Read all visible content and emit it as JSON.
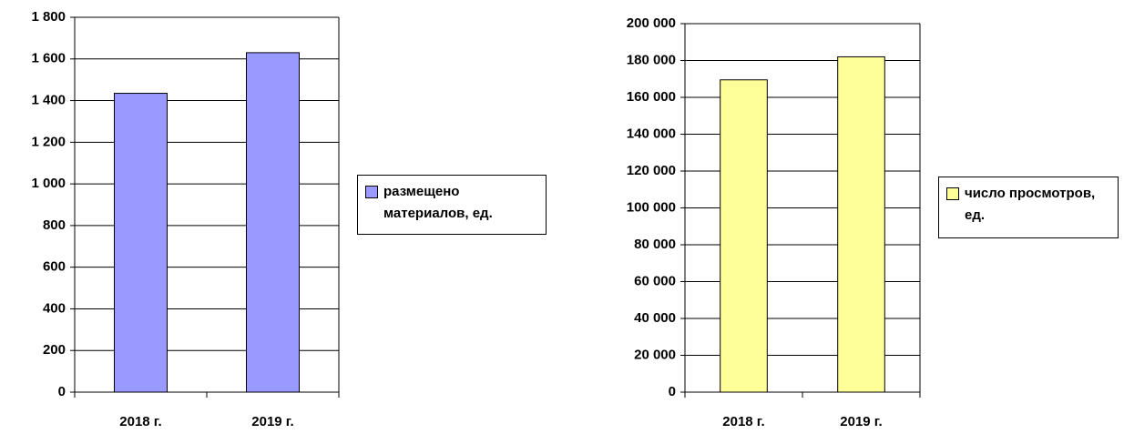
{
  "chart_data": [
    {
      "type": "bar",
      "categories": [
        "2018 г.",
        "2019 г."
      ],
      "series": [
        {
          "name": "размещено материалов, ед.",
          "color": "#9999ff",
          "values": [
            1435,
            1630
          ]
        }
      ],
      "ylim": [
        0,
        1800
      ],
      "yticks": [
        0,
        200,
        400,
        600,
        800,
        {
          "value": 1000,
          "label": "1 000"
        },
        {
          "value": 1200,
          "label": "1 200"
        },
        {
          "value": 1400,
          "label": "1 400"
        },
        {
          "value": 1600,
          "label": "1 600"
        },
        {
          "value": 1800,
          "label": "1 800"
        }
      ],
      "grid": true,
      "legend": "right"
    },
    {
      "type": "bar",
      "categories": [
        "2018 г.",
        "2019 г."
      ],
      "series": [
        {
          "name": "число просмотров, ед.",
          "color": "#ffff99",
          "values": [
            169500,
            182000
          ]
        }
      ],
      "ylim": [
        0,
        200000
      ],
      "yticks": [
        0,
        {
          "value": 20000,
          "label": "20 000"
        },
        {
          "value": 40000,
          "label": "40 000"
        },
        {
          "value": 60000,
          "label": "60 000"
        },
        {
          "value": 80000,
          "label": "80 000"
        },
        {
          "value": 100000,
          "label": "100 000"
        },
        {
          "value": 120000,
          "label": "120 000"
        },
        {
          "value": 140000,
          "label": "140 000"
        },
        {
          "value": 160000,
          "label": "160 000"
        },
        {
          "value": 180000,
          "label": "180 000"
        },
        {
          "value": 200000,
          "label": "200 000"
        }
      ],
      "grid": true,
      "legend": "right"
    }
  ]
}
